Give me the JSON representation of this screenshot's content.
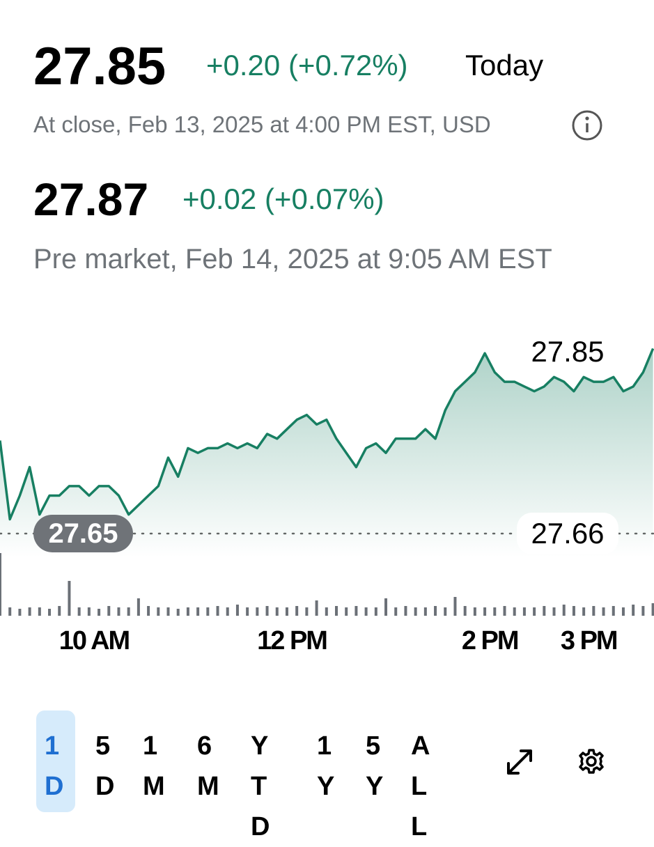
{
  "quote": {
    "price": "27.85",
    "change": "+0.20 (+0.72%)",
    "period": "Today",
    "status": "At close, Feb 13, 2025 at 4:00 PM EST, USD"
  },
  "pre_market": {
    "price": "27.87",
    "change": "+0.02 (+0.07%)",
    "status": "Pre market, Feb 14, 2025 at 9:05 AM EST"
  },
  "chart_data": {
    "type": "line",
    "color": "#177f62",
    "x": [
      9.05,
      9.15,
      9.25,
      9.35,
      9.45,
      9.55,
      9.65,
      9.75,
      9.85,
      9.95,
      10.05,
      10.15,
      10.25,
      10.35,
      10.45,
      10.55,
      10.65,
      10.75,
      10.85,
      10.95,
      11.05,
      11.15,
      11.25,
      11.35,
      11.45,
      11.55,
      11.65,
      11.75,
      11.85,
      11.95,
      12.05,
      12.15,
      12.25,
      12.35,
      12.45,
      12.55,
      12.65,
      12.75,
      12.85,
      12.95,
      13.05,
      13.15,
      13.25,
      13.35,
      13.45,
      13.55,
      13.65,
      13.75,
      13.85,
      13.95,
      14.05,
      14.15,
      14.25,
      14.35,
      14.45,
      14.55,
      14.65,
      14.75,
      14.85,
      14.95,
      15.05,
      15.15,
      15.25,
      15.35,
      15.45,
      15.55,
      15.65
    ],
    "values": [
      27.758,
      27.675,
      27.7,
      27.73,
      27.68,
      27.7,
      27.7,
      27.71,
      27.71,
      27.7,
      27.71,
      27.71,
      27.7,
      27.68,
      27.69,
      27.7,
      27.71,
      27.74,
      27.72,
      27.75,
      27.745,
      27.75,
      27.75,
      27.755,
      27.75,
      27.755,
      27.75,
      27.765,
      27.76,
      27.77,
      27.78,
      27.785,
      27.775,
      27.78,
      27.76,
      27.745,
      27.73,
      27.75,
      27.755,
      27.745,
      27.76,
      27.76,
      27.76,
      27.77,
      27.76,
      27.79,
      27.81,
      27.82,
      27.83,
      27.85,
      27.83,
      27.82,
      27.82,
      27.815,
      27.81,
      27.815,
      27.825,
      27.82,
      27.81,
      27.825,
      27.82,
      27.82,
      27.825,
      27.81,
      27.815,
      27.83,
      27.855
    ],
    "volume": [
      90,
      12,
      10,
      12,
      12,
      10,
      14,
      50,
      12,
      12,
      10,
      14,
      12,
      12,
      25,
      14,
      12,
      12,
      10,
      12,
      12,
      12,
      14,
      12,
      16,
      12,
      12,
      14,
      12,
      12,
      14,
      12,
      22,
      12,
      14,
      12,
      14,
      12,
      12,
      25,
      12,
      14,
      12,
      12,
      14,
      12,
      27,
      14,
      12,
      12,
      12,
      14,
      12,
      12,
      12,
      14,
      12,
      16,
      14,
      12,
      14,
      12,
      14,
      12,
      16,
      14,
      18
    ],
    "volume_lim": [
      0,
      95
    ],
    "xlim": [
      9.05,
      15.66
    ],
    "ylim": [
      27.635,
      27.87
    ],
    "xticks": [
      {
        "value": 10,
        "label": "10 AM"
      },
      {
        "value": 12,
        "label": "12 PM"
      },
      {
        "value": 14,
        "label": "2 PM"
      },
      {
        "value": 15,
        "label": "3 PM"
      }
    ],
    "high": 27.85,
    "low": 27.65,
    "previous_close": 27.66
  },
  "ranges": {
    "options": [
      "1D",
      "5D",
      "1M",
      "6M",
      "YTD",
      "1Y",
      "5Y",
      "ALL"
    ],
    "selected": 0
  }
}
